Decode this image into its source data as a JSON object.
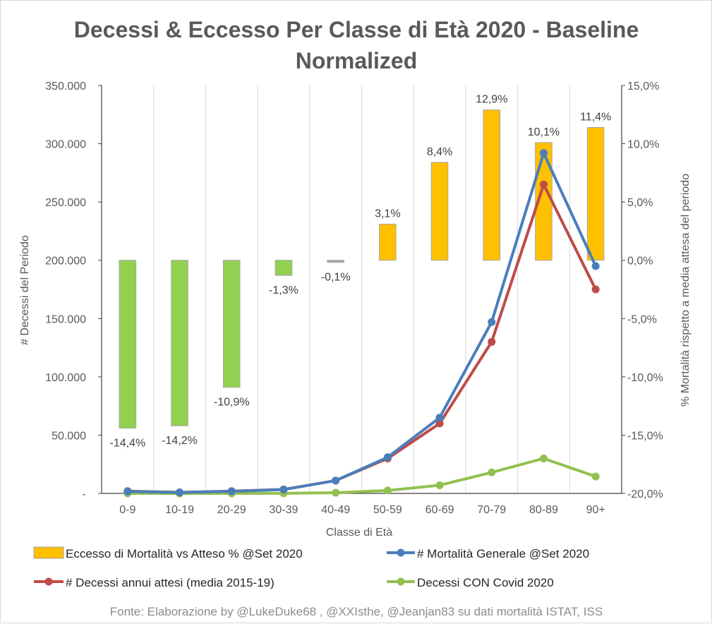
{
  "chart_data": {
    "type": "bar",
    "title": "Decessi & Eccesso Per Classe di Età 2020 - Baseline",
    "subtitle": "Normalized",
    "xlabel": "Classe di Età",
    "ylabel_left": "# Decessi del Periodo",
    "ylabel_right": "% Mortalità rispetto a media attesa del periodo",
    "categories": [
      "0-9",
      "10-19",
      "20-29",
      "30-39",
      "40-49",
      "50-59",
      "60-69",
      "70-79",
      "80-89",
      "90+"
    ],
    "y_left": {
      "lim": [
        0,
        350000
      ],
      "ticks": [
        0,
        50000,
        100000,
        150000,
        200000,
        250000,
        300000,
        350000
      ],
      "tick_labels": [
        "-",
        "50.000",
        "100.000",
        "150.000",
        "200.000",
        "250.000",
        "300.000",
        "350.000"
      ]
    },
    "y_right": {
      "lim": [
        -20,
        15
      ],
      "ticks": [
        -20,
        -15,
        -10,
        -5,
        0,
        5,
        10,
        15
      ],
      "tick_labels": [
        "-20,0%",
        "-15,0%",
        "-10,0%",
        "-5,0%",
        "0,0%",
        "5,0%",
        "10,0%",
        "15,0%"
      ]
    },
    "grid": "vertical",
    "legend_position": "bottom",
    "series": [
      {
        "name": "Eccesso di Mortalità vs Atteso % @Set 2020",
        "kind": "bar",
        "axis": "right",
        "values": [
          -14.4,
          -14.2,
          -10.9,
          -1.3,
          -0.1,
          3.1,
          8.4,
          12.9,
          10.1,
          11.4
        ],
        "labels": [
          "-14,4%",
          "-14,2%",
          "-10,9%",
          "-1,3%",
          "-0,1%",
          "3,1%",
          "8,4%",
          "12,9%",
          "10,1%",
          "11,4%"
        ],
        "color_positive": "#ffc000",
        "color_negative": "#92d050",
        "color_small": "#a6a6a6"
      },
      {
        "name": "# Mortalità Generale @Set 2020",
        "kind": "line",
        "axis": "left",
        "values": [
          1700,
          800,
          1800,
          3300,
          11000,
          31000,
          65000,
          147000,
          292000,
          195000
        ],
        "color": "#4a7ebb"
      },
      {
        "name": "# Decessi annui attesi (media 2015-19)",
        "kind": "line",
        "axis": "left",
        "values": [
          2000,
          900,
          2000,
          3400,
          11000,
          30000,
          60000,
          130000,
          265000,
          175000
        ],
        "color": "#be4b48"
      },
      {
        "name": "Decessi CON Covid 2020",
        "kind": "line",
        "axis": "left",
        "values": [
          0,
          0,
          0,
          100,
          600,
          2500,
          7000,
          18000,
          30000,
          14500
        ],
        "color": "#92c050"
      }
    ]
  },
  "source_note": "Fonte: Elaborazione by @LukeDuke68 , @XXIsthe, @Jeanjan83 su dati mortalità ISTAT, ISS"
}
